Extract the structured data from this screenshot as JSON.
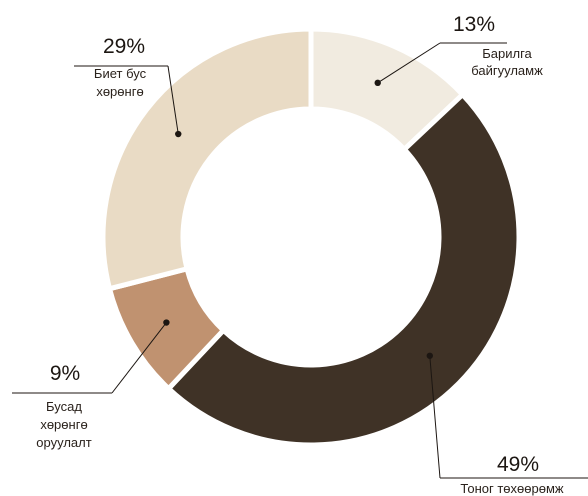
{
  "chart_data": {
    "type": "pie",
    "variant": "donut",
    "colors_meaning": "slice fills",
    "slices": [
      {
        "label_lines": [
          "Барилга",
          "байгууламж"
        ],
        "value": 13,
        "value_text": "13%",
        "color": "#f1ebe0"
      },
      {
        "label_lines": [
          "Тоног төхөөрөмж"
        ],
        "value": 49,
        "value_text": "49%",
        "color": "#3f3226"
      },
      {
        "label_lines": [
          "Бусад",
          "хөрөнгө",
          "оруулалт"
        ],
        "value": 9,
        "value_text": "9%",
        "color": "#c09270"
      },
      {
        "label_lines": [
          "Биет бус",
          "хөрөнгө"
        ],
        "value": 29,
        "value_text": "29%",
        "color": "#e9dbc5"
      }
    ],
    "legend": "none",
    "data_labels": "outside-with-leader-lines"
  }
}
